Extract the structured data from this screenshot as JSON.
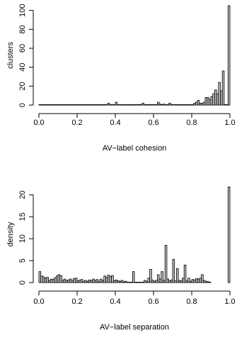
{
  "chart_data": [
    {
      "type": "bar",
      "xlabel": "AV−label cohesion",
      "ylabel": "clusters",
      "xlim": [
        0.0,
        1.0
      ],
      "ylim": [
        0,
        105
      ],
      "xticks": [
        "0.0",
        "0.2",
        "0.4",
        "0.6",
        "0.8",
        "1.0"
      ],
      "yticks": [
        "0",
        "20",
        "40",
        "60",
        "80",
        "100"
      ],
      "bin_width": 0.01,
      "bins": [
        {
          "x": 0.0,
          "y": 0.5
        },
        {
          "x": 0.01,
          "y": 0.5
        },
        {
          "x": 0.02,
          "y": 0.5
        },
        {
          "x": 0.03,
          "y": 0.5
        },
        {
          "x": 0.04,
          "y": 0.5
        },
        {
          "x": 0.05,
          "y": 0.5
        },
        {
          "x": 0.06,
          "y": 0.5
        },
        {
          "x": 0.07,
          "y": 0.5
        },
        {
          "x": 0.08,
          "y": 0.5
        },
        {
          "x": 0.09,
          "y": 0.5
        },
        {
          "x": 0.1,
          "y": 0.5
        },
        {
          "x": 0.11,
          "y": 0.5
        },
        {
          "x": 0.12,
          "y": 0.5
        },
        {
          "x": 0.13,
          "y": 0.5
        },
        {
          "x": 0.14,
          "y": 0.5
        },
        {
          "x": 0.15,
          "y": 0.5
        },
        {
          "x": 0.16,
          "y": 0.5
        },
        {
          "x": 0.17,
          "y": 0.5
        },
        {
          "x": 0.18,
          "y": 0.5
        },
        {
          "x": 0.19,
          "y": 0.5
        },
        {
          "x": 0.2,
          "y": 0.5
        },
        {
          "x": 0.21,
          "y": 0.5
        },
        {
          "x": 0.22,
          "y": 0.5
        },
        {
          "x": 0.23,
          "y": 0.5
        },
        {
          "x": 0.24,
          "y": 0.5
        },
        {
          "x": 0.25,
          "y": 0.5
        },
        {
          "x": 0.26,
          "y": 0.5
        },
        {
          "x": 0.27,
          "y": 0.5
        },
        {
          "x": 0.28,
          "y": 0.5
        },
        {
          "x": 0.29,
          "y": 0.5
        },
        {
          "x": 0.3,
          "y": 0.5
        },
        {
          "x": 0.31,
          "y": 0.5
        },
        {
          "x": 0.32,
          "y": 0.5
        },
        {
          "x": 0.33,
          "y": 0.5
        },
        {
          "x": 0.34,
          "y": 0.5
        },
        {
          "x": 0.35,
          "y": 0.5
        },
        {
          "x": 0.36,
          "y": 2
        },
        {
          "x": 0.37,
          "y": 0.5
        },
        {
          "x": 0.38,
          "y": 0.5
        },
        {
          "x": 0.39,
          "y": 0.5
        },
        {
          "x": 0.4,
          "y": 3
        },
        {
          "x": 0.41,
          "y": 0.5
        },
        {
          "x": 0.42,
          "y": 0.5
        },
        {
          "x": 0.43,
          "y": 0.5
        },
        {
          "x": 0.44,
          "y": 0.5
        },
        {
          "x": 0.45,
          "y": 0.5
        },
        {
          "x": 0.46,
          "y": 0.5
        },
        {
          "x": 0.47,
          "y": 0.5
        },
        {
          "x": 0.48,
          "y": 0.5
        },
        {
          "x": 0.49,
          "y": 0.5
        },
        {
          "x": 0.5,
          "y": 0.5
        },
        {
          "x": 0.51,
          "y": 0.5
        },
        {
          "x": 0.52,
          "y": 0.5
        },
        {
          "x": 0.53,
          "y": 0.5
        },
        {
          "x": 0.54,
          "y": 2
        },
        {
          "x": 0.55,
          "y": 0.5
        },
        {
          "x": 0.56,
          "y": 0.5
        },
        {
          "x": 0.57,
          "y": 0.5
        },
        {
          "x": 0.58,
          "y": 0.5
        },
        {
          "x": 0.59,
          "y": 0.5
        },
        {
          "x": 0.6,
          "y": 0.5
        },
        {
          "x": 0.61,
          "y": 0.5
        },
        {
          "x": 0.62,
          "y": 3
        },
        {
          "x": 0.63,
          "y": 1
        },
        {
          "x": 0.64,
          "y": 0.5
        },
        {
          "x": 0.65,
          "y": 1
        },
        {
          "x": 0.66,
          "y": 0.5
        },
        {
          "x": 0.67,
          "y": 0.5
        },
        {
          "x": 0.68,
          "y": 2
        },
        {
          "x": 0.69,
          "y": 0.5
        },
        {
          "x": 0.7,
          "y": 0.5
        },
        {
          "x": 0.71,
          "y": 0.5
        },
        {
          "x": 0.72,
          "y": 0.5
        },
        {
          "x": 0.73,
          "y": 0.5
        },
        {
          "x": 0.74,
          "y": 0.5
        },
        {
          "x": 0.75,
          "y": 0.5
        },
        {
          "x": 0.76,
          "y": 0.5
        },
        {
          "x": 0.77,
          "y": 0.5
        },
        {
          "x": 0.78,
          "y": 0.5
        },
        {
          "x": 0.79,
          "y": 0.5
        },
        {
          "x": 0.8,
          "y": 0.5
        },
        {
          "x": 0.81,
          "y": 2
        },
        {
          "x": 0.82,
          "y": 3
        },
        {
          "x": 0.83,
          "y": 5
        },
        {
          "x": 0.84,
          "y": 2
        },
        {
          "x": 0.85,
          "y": 2
        },
        {
          "x": 0.86,
          "y": 3
        },
        {
          "x": 0.87,
          "y": 8
        },
        {
          "x": 0.88,
          "y": 8
        },
        {
          "x": 0.89,
          "y": 6
        },
        {
          "x": 0.9,
          "y": 9
        },
        {
          "x": 0.91,
          "y": 12
        },
        {
          "x": 0.92,
          "y": 16
        },
        {
          "x": 0.93,
          "y": 12
        },
        {
          "x": 0.94,
          "y": 24
        },
        {
          "x": 0.95,
          "y": 15
        },
        {
          "x": 0.96,
          "y": 36
        },
        {
          "x": 0.97,
          "y": 0.5
        },
        {
          "x": 0.98,
          "y": 0.5
        },
        {
          "x": 0.99,
          "y": 105
        }
      ]
    },
    {
      "type": "bar",
      "xlabel": "AV−label separation",
      "ylabel": "density",
      "xlim": [
        0.0,
        1.0
      ],
      "ylim": [
        0,
        22
      ],
      "xticks": [
        "0.0",
        "0.2",
        "0.4",
        "0.6",
        "0.8",
        "1.0"
      ],
      "yticks": [
        "0",
        "5",
        "10",
        "15",
        "20"
      ],
      "bin_width": 0.01,
      "bins": [
        {
          "x": 0.0,
          "y": 2.5
        },
        {
          "x": 0.01,
          "y": 1.5
        },
        {
          "x": 0.02,
          "y": 1.3
        },
        {
          "x": 0.03,
          "y": 1.0
        },
        {
          "x": 0.04,
          "y": 1.2
        },
        {
          "x": 0.05,
          "y": 0.5
        },
        {
          "x": 0.06,
          "y": 0.8
        },
        {
          "x": 0.07,
          "y": 0.7
        },
        {
          "x": 0.08,
          "y": 1.1
        },
        {
          "x": 0.09,
          "y": 1.5
        },
        {
          "x": 0.1,
          "y": 1.8
        },
        {
          "x": 0.11,
          "y": 1.6
        },
        {
          "x": 0.12,
          "y": 0.5
        },
        {
          "x": 0.13,
          "y": 0.8
        },
        {
          "x": 0.14,
          "y": 0.5
        },
        {
          "x": 0.15,
          "y": 0.6
        },
        {
          "x": 0.16,
          "y": 0.8
        },
        {
          "x": 0.17,
          "y": 0.5
        },
        {
          "x": 0.18,
          "y": 0.9
        },
        {
          "x": 0.19,
          "y": 1.0
        },
        {
          "x": 0.2,
          "y": 0.4
        },
        {
          "x": 0.21,
          "y": 0.6
        },
        {
          "x": 0.22,
          "y": 0.7
        },
        {
          "x": 0.23,
          "y": 0.3
        },
        {
          "x": 0.24,
          "y": 0.5
        },
        {
          "x": 0.25,
          "y": 0.3
        },
        {
          "x": 0.26,
          "y": 0.6
        },
        {
          "x": 0.27,
          "y": 0.4
        },
        {
          "x": 0.28,
          "y": 0.8
        },
        {
          "x": 0.29,
          "y": 0.5
        },
        {
          "x": 0.3,
          "y": 0.7
        },
        {
          "x": 0.31,
          "y": 0.3
        },
        {
          "x": 0.32,
          "y": 0.8
        },
        {
          "x": 0.33,
          "y": 0.5
        },
        {
          "x": 0.34,
          "y": 1.5
        },
        {
          "x": 0.35,
          "y": 1.2
        },
        {
          "x": 0.36,
          "y": 1.7
        },
        {
          "x": 0.37,
          "y": 1.4
        },
        {
          "x": 0.38,
          "y": 1.6
        },
        {
          "x": 0.39,
          "y": 0.4
        },
        {
          "x": 0.4,
          "y": 0.6
        },
        {
          "x": 0.41,
          "y": 0.4
        },
        {
          "x": 0.42,
          "y": 0.3
        },
        {
          "x": 0.43,
          "y": 0.5
        },
        {
          "x": 0.44,
          "y": 0.2
        },
        {
          "x": 0.45,
          "y": 0.3
        },
        {
          "x": 0.46,
          "y": 0.1
        },
        {
          "x": 0.47,
          "y": 0.1
        },
        {
          "x": 0.48,
          "y": 0.1
        },
        {
          "x": 0.49,
          "y": 2.5
        },
        {
          "x": 0.5,
          "y": 0.1
        },
        {
          "x": 0.51,
          "y": 0.1
        },
        {
          "x": 0.52,
          "y": 0.1
        },
        {
          "x": 0.53,
          "y": 0.1
        },
        {
          "x": 0.54,
          "y": 0.1
        },
        {
          "x": 0.55,
          "y": 0.5
        },
        {
          "x": 0.56,
          "y": 0.3
        },
        {
          "x": 0.57,
          "y": 1.0
        },
        {
          "x": 0.58,
          "y": 3.0
        },
        {
          "x": 0.59,
          "y": 0.6
        },
        {
          "x": 0.6,
          "y": 0.3
        },
        {
          "x": 0.61,
          "y": 0.5
        },
        {
          "x": 0.62,
          "y": 1.8
        },
        {
          "x": 0.63,
          "y": 0.8
        },
        {
          "x": 0.64,
          "y": 2.5
        },
        {
          "x": 0.65,
          "y": 0.5
        },
        {
          "x": 0.66,
          "y": 8.5
        },
        {
          "x": 0.67,
          "y": 0.8
        },
        {
          "x": 0.68,
          "y": 0.4
        },
        {
          "x": 0.69,
          "y": 0.6
        },
        {
          "x": 0.7,
          "y": 5.3
        },
        {
          "x": 0.71,
          "y": 0.4
        },
        {
          "x": 0.72,
          "y": 3.2
        },
        {
          "x": 0.73,
          "y": 0.5
        },
        {
          "x": 0.74,
          "y": 0.4
        },
        {
          "x": 0.75,
          "y": 1.0
        },
        {
          "x": 0.76,
          "y": 4.0
        },
        {
          "x": 0.77,
          "y": 0.4
        },
        {
          "x": 0.78,
          "y": 1.0
        },
        {
          "x": 0.79,
          "y": 0.3
        },
        {
          "x": 0.8,
          "y": 0.7
        },
        {
          "x": 0.81,
          "y": 0.6
        },
        {
          "x": 0.82,
          "y": 0.9
        },
        {
          "x": 0.83,
          "y": 0.8
        },
        {
          "x": 0.84,
          "y": 1.0
        },
        {
          "x": 0.85,
          "y": 1.8
        },
        {
          "x": 0.86,
          "y": 0.5
        },
        {
          "x": 0.87,
          "y": 0.3
        },
        {
          "x": 0.88,
          "y": 0.2
        },
        {
          "x": 0.89,
          "y": 0.1
        },
        {
          "x": 0.9,
          "y": 0.0
        },
        {
          "x": 0.91,
          "y": 0.0
        },
        {
          "x": 0.92,
          "y": 0.0
        },
        {
          "x": 0.93,
          "y": 0.0
        },
        {
          "x": 0.94,
          "y": 0.0
        },
        {
          "x": 0.95,
          "y": 0.0
        },
        {
          "x": 0.96,
          "y": 0.0
        },
        {
          "x": 0.97,
          "y": 0.0
        },
        {
          "x": 0.98,
          "y": 0.0
        },
        {
          "x": 0.99,
          "y": 21.8
        }
      ]
    }
  ]
}
